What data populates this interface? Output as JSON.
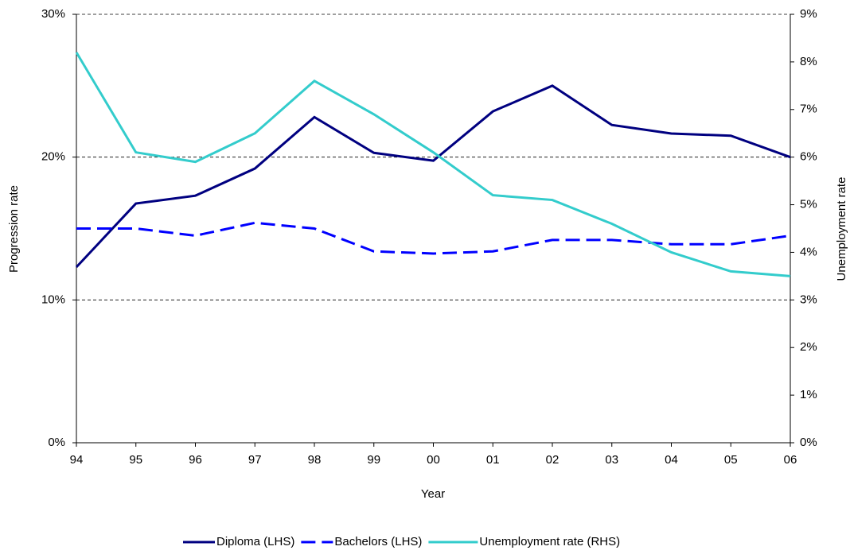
{
  "chart_data": {
    "type": "line",
    "x_label": "Year",
    "y_label": "Progression rate",
    "y2_label": "Unemployment rate",
    "categories": [
      "94",
      "95",
      "96",
      "97",
      "98",
      "99",
      "00",
      "01",
      "02",
      "03",
      "04",
      "05",
      "06"
    ],
    "series": [
      {
        "name": "Diploma (LHS)",
        "color": "#000080",
        "line_style": "solid",
        "values": [
          12.3,
          16.75,
          17.3,
          19.2,
          22.8,
          20.3,
          19.75,
          23.2,
          25.0,
          22.25,
          21.65,
          21.5,
          20.0
        ]
      },
      {
        "name": "Bachelors (LHS)",
        "color": "#0000ff",
        "line_style": "dashed",
        "values": [
          15.0,
          15.0,
          14.5,
          15.4,
          15.0,
          13.4,
          13.25,
          13.4,
          14.2,
          14.2,
          13.9,
          13.9,
          14.5
        ]
      },
      {
        "name": "Unemployment rate (RHS)",
        "color": "#33cccc",
        "line_style": "solid",
        "axis": "y2",
        "values": [
          8.2,
          6.1,
          5.9,
          6.5,
          7.6,
          6.9,
          6.1,
          5.2,
          5.1,
          4.6,
          4.0,
          3.6,
          3.5
        ]
      }
    ],
    "ylim": [
      0,
      30
    ],
    "yticks": [
      {
        "value": 0,
        "label": "0%"
      },
      {
        "value": 10,
        "label": "10%"
      },
      {
        "value": 20,
        "label": "20%"
      },
      {
        "value": 30,
        "label": "30%"
      }
    ],
    "y2lim": [
      0,
      9
    ],
    "y2ticks": [
      {
        "value": 0,
        "label": "0%"
      },
      {
        "value": 1,
        "label": "1%"
      },
      {
        "value": 2,
        "label": "2%"
      },
      {
        "value": 3,
        "label": "3%"
      },
      {
        "value": 4,
        "label": "4%"
      },
      {
        "value": 5,
        "label": "5%"
      },
      {
        "value": 6,
        "label": "6%"
      },
      {
        "value": 7,
        "label": "7%"
      },
      {
        "value": 8,
        "label": "8%"
      },
      {
        "value": 9,
        "label": "9%"
      }
    ],
    "grid": true,
    "legend": "bottom"
  }
}
